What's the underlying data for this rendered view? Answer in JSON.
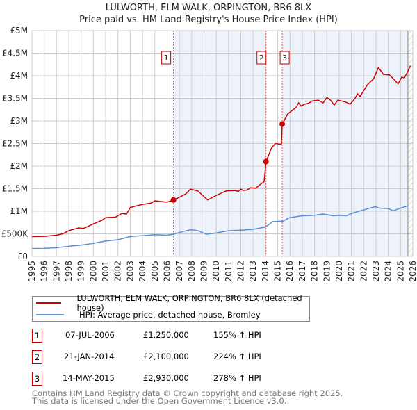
{
  "title": "LULWORTH, ELM WALK, ORPINGTON, BR6 8LX",
  "subtitle": "Price paid vs. HM Land Registry's House Price Index (HPI)",
  "chart_data": {
    "type": "line",
    "xlim": [
      1995,
      2026
    ],
    "ylim": [
      0,
      5000000
    ],
    "yticks": [
      {
        "v": 0,
        "label": "£0"
      },
      {
        "v": 500000,
        "label": "£500K"
      },
      {
        "v": 1000000,
        "label": "£1M"
      },
      {
        "v": 1500000,
        "label": "£1.5M"
      },
      {
        "v": 2000000,
        "label": "£2M"
      },
      {
        "v": 2500000,
        "label": "£2.5M"
      },
      {
        "v": 3000000,
        "label": "£3M"
      },
      {
        "v": 3500000,
        "label": "£3.5M"
      },
      {
        "v": 4000000,
        "label": "£4M"
      },
      {
        "v": 4500000,
        "label": "£4.5M"
      },
      {
        "v": 5000000,
        "label": "£5M"
      }
    ],
    "xticks": [
      "1995",
      "1996",
      "1997",
      "1998",
      "1999",
      "2000",
      "2001",
      "2002",
      "2003",
      "2004",
      "2005",
      "2006",
      "2007",
      "2008",
      "2009",
      "2010",
      "2011",
      "2012",
      "2013",
      "2014",
      "2015",
      "2016",
      "2017",
      "2018",
      "2019",
      "2020",
      "2021",
      "2022",
      "2023",
      "2024",
      "2025",
      "2026"
    ],
    "grid": true,
    "data_end": 2025.6,
    "series": [
      {
        "name": "LULWORTH, ELM WALK, ORPINGTON, BR6 8LX (detached house)",
        "color": "#cc0000",
        "points": [
          [
            1995,
            440000
          ],
          [
            1996,
            445000
          ],
          [
            1997,
            470000
          ],
          [
            1997.5,
            500000
          ],
          [
            1998,
            570000
          ],
          [
            1998.8,
            630000
          ],
          [
            1999.2,
            620000
          ],
          [
            2000,
            720000
          ],
          [
            2000.7,
            800000
          ],
          [
            2001,
            860000
          ],
          [
            2001.8,
            870000
          ],
          [
            2002.3,
            950000
          ],
          [
            2002.7,
            940000
          ],
          [
            2003,
            1080000
          ],
          [
            2003.5,
            1120000
          ],
          [
            2004,
            1150000
          ],
          [
            2004.7,
            1180000
          ],
          [
            2005,
            1230000
          ],
          [
            2006,
            1200000
          ],
          [
            2006.52,
            1250000
          ],
          [
            2007,
            1310000
          ],
          [
            2007.5,
            1380000
          ],
          [
            2007.9,
            1490000
          ],
          [
            2008.5,
            1450000
          ],
          [
            2009.3,
            1250000
          ],
          [
            2010,
            1350000
          ],
          [
            2010.8,
            1450000
          ],
          [
            2011.5,
            1460000
          ],
          [
            2011.8,
            1440000
          ],
          [
            2012,
            1490000
          ],
          [
            2012.2,
            1460000
          ],
          [
            2012.5,
            1470000
          ],
          [
            2012.8,
            1520000
          ],
          [
            2013.2,
            1510000
          ],
          [
            2013.9,
            1660000
          ],
          [
            2014.05,
            2100000
          ],
          [
            2014.5,
            2400000
          ],
          [
            2014.8,
            2500000
          ],
          [
            2015.3,
            2480000
          ],
          [
            2015.37,
            2930000
          ],
          [
            2015.8,
            3150000
          ],
          [
            2016.5,
            3300000
          ],
          [
            2016.7,
            3400000
          ],
          [
            2016.9,
            3330000
          ],
          [
            2017.2,
            3370000
          ],
          [
            2017.5,
            3390000
          ],
          [
            2017.8,
            3440000
          ],
          [
            2018.3,
            3460000
          ],
          [
            2018.7,
            3400000
          ],
          [
            2019,
            3520000
          ],
          [
            2019.3,
            3460000
          ],
          [
            2019.6,
            3350000
          ],
          [
            2019.9,
            3460000
          ],
          [
            2020.5,
            3420000
          ],
          [
            2020.9,
            3370000
          ],
          [
            2021.3,
            3500000
          ],
          [
            2021.5,
            3600000
          ],
          [
            2021.7,
            3540000
          ],
          [
            2022.3,
            3800000
          ],
          [
            2022.8,
            3930000
          ],
          [
            2023.2,
            4180000
          ],
          [
            2023.6,
            4030000
          ],
          [
            2024.1,
            4020000
          ],
          [
            2024.5,
            3910000
          ],
          [
            2024.8,
            3820000
          ],
          [
            2025.1,
            3970000
          ],
          [
            2025.3,
            3950000
          ],
          [
            2025.6,
            4100000
          ],
          [
            2025.8,
            4220000
          ]
        ]
      },
      {
        "name": "HPI: Average price, detached house, Bromley",
        "color": "#5b8fd6",
        "points": [
          [
            1995,
            175000
          ],
          [
            1996,
            178000
          ],
          [
            1997,
            195000
          ],
          [
            1998,
            225000
          ],
          [
            1999,
            250000
          ],
          [
            2000,
            290000
          ],
          [
            2001,
            340000
          ],
          [
            2002,
            370000
          ],
          [
            2003,
            440000
          ],
          [
            2004,
            460000
          ],
          [
            2005,
            480000
          ],
          [
            2006,
            470000
          ],
          [
            2006.5,
            490000
          ],
          [
            2007,
            530000
          ],
          [
            2007.9,
            590000
          ],
          [
            2008.5,
            570000
          ],
          [
            2009.2,
            490000
          ],
          [
            2010,
            520000
          ],
          [
            2011,
            570000
          ],
          [
            2012,
            580000
          ],
          [
            2013,
            600000
          ],
          [
            2014,
            650000
          ],
          [
            2014.6,
            770000
          ],
          [
            2015.4,
            780000
          ],
          [
            2016,
            860000
          ],
          [
            2017,
            900000
          ],
          [
            2018,
            910000
          ],
          [
            2018.7,
            940000
          ],
          [
            2019.5,
            900000
          ],
          [
            2020,
            910000
          ],
          [
            2020.6,
            900000
          ],
          [
            2021,
            950000
          ],
          [
            2022,
            1030000
          ],
          [
            2022.9,
            1100000
          ],
          [
            2023.3,
            1070000
          ],
          [
            2024,
            1060000
          ],
          [
            2024.4,
            1010000
          ],
          [
            2024.9,
            1060000
          ],
          [
            2025.6,
            1120000
          ]
        ]
      }
    ],
    "sales": [
      {
        "label": "1",
        "x": 2006.52,
        "price": 1250000,
        "date": "07-JUL-2006",
        "price_text": "£1,250,000",
        "hpi": "155% ↑ HPI"
      },
      {
        "label": "2",
        "x": 2014.05,
        "price": 2100000,
        "date": "21-JAN-2014",
        "price_text": "£2,100,000",
        "hpi": "224% ↑ HPI"
      },
      {
        "label": "3",
        "x": 2015.37,
        "price": 2930000,
        "date": "14-MAY-2015",
        "price_text": "£2,930,000",
        "hpi": "278% ↑ HPI"
      }
    ]
  },
  "legend": {
    "red": "LULWORTH, ELM WALK, ORPINGTON, BR6 8LX (detached house)",
    "blue": "HPI: Average price, detached house, Bromley"
  },
  "footer": {
    "line1": "Contains HM Land Registry data © Crown copyright and database right 2025.",
    "line2": "This data is licensed under the Open Government Licence v3.0."
  }
}
